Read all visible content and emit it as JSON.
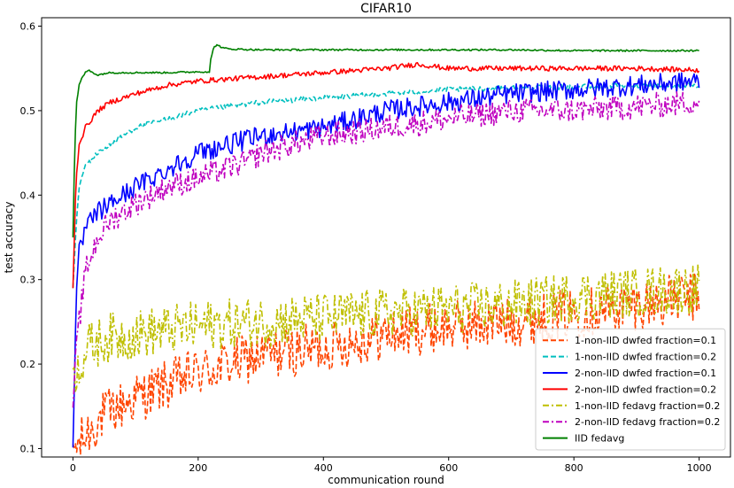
{
  "chart_data": {
    "type": "line",
    "title": "CIFAR10",
    "xlabel": "communication round",
    "ylabel": "test accuracy",
    "xlim": [
      -50,
      1050
    ],
    "ylim": [
      0.09,
      0.61
    ],
    "xticks": [
      0,
      200,
      400,
      600,
      800,
      1000
    ],
    "yticks": [
      0.1,
      0.2,
      0.3,
      0.4,
      0.5,
      0.6
    ],
    "xtick_labels": [
      "0",
      "200",
      "400",
      "600",
      "800",
      "1000"
    ],
    "ytick_labels": [
      "0.1",
      "0.2",
      "0.3",
      "0.4",
      "0.5",
      "0.6"
    ],
    "grid": false,
    "legend_position": "lower-right",
    "series": [
      {
        "name": "1-non-IID dwfed fraction=0.1",
        "color": "#ff4500",
        "style": "dashed",
        "x": [
          0,
          10,
          25,
          50,
          100,
          150,
          200,
          250,
          300,
          400,
          500,
          600,
          700,
          800,
          900,
          1000
        ],
        "y": [
          0.1,
          0.105,
          0.12,
          0.14,
          0.16,
          0.175,
          0.19,
          0.2,
          0.21,
          0.22,
          0.235,
          0.245,
          0.25,
          0.26,
          0.27,
          0.28
        ],
        "noise": 0.03
      },
      {
        "name": "1-non-IID dwfed fraction=0.2",
        "color": "#00bfbf",
        "style": "dashed",
        "x": [
          0,
          5,
          10,
          20,
          40,
          60,
          100,
          150,
          200,
          300,
          400,
          500,
          600,
          700,
          800,
          900,
          1000
        ],
        "y": [
          0.29,
          0.36,
          0.41,
          0.435,
          0.45,
          0.46,
          0.48,
          0.49,
          0.5,
          0.51,
          0.515,
          0.52,
          0.525,
          0.527,
          0.528,
          0.53,
          0.53
        ],
        "noise": 0.003
      },
      {
        "name": "2-non-IID dwfed fraction=0.1",
        "color": "#0000ff",
        "style": "solid",
        "x": [
          0,
          5,
          10,
          20,
          40,
          60,
          100,
          150,
          200,
          300,
          400,
          500,
          600,
          700,
          800,
          900,
          1000
        ],
        "y": [
          0.1,
          0.27,
          0.33,
          0.36,
          0.38,
          0.39,
          0.41,
          0.43,
          0.45,
          0.47,
          0.48,
          0.5,
          0.51,
          0.52,
          0.525,
          0.53,
          0.535
        ],
        "noise": 0.012
      },
      {
        "name": "2-non-IID dwfed fraction=0.2",
        "color": "#ff0000",
        "style": "solid",
        "x": [
          0,
          5,
          10,
          20,
          40,
          60,
          100,
          150,
          200,
          300,
          400,
          500,
          550,
          600,
          700,
          800,
          900,
          1000
        ],
        "y": [
          0.29,
          0.42,
          0.46,
          0.48,
          0.5,
          0.51,
          0.52,
          0.53,
          0.535,
          0.54,
          0.545,
          0.55,
          0.555,
          0.55,
          0.55,
          0.55,
          0.55,
          0.548
        ],
        "noise": 0.003
      },
      {
        "name": "1-non-IID fedavg fraction=0.2",
        "color": "#bfbf00",
        "style": "dashdot",
        "x": [
          0,
          10,
          25,
          50,
          100,
          150,
          200,
          300,
          400,
          500,
          600,
          700,
          800,
          900,
          1000
        ],
        "y": [
          0.19,
          0.2,
          0.22,
          0.23,
          0.235,
          0.24,
          0.245,
          0.25,
          0.255,
          0.26,
          0.265,
          0.27,
          0.28,
          0.285,
          0.29
        ],
        "noise": 0.03
      },
      {
        "name": "2-non-IID fedavg fraction=0.2",
        "color": "#bf00bf",
        "style": "dashdot",
        "x": [
          0,
          5,
          10,
          20,
          40,
          60,
          100,
          150,
          200,
          280,
          300,
          400,
          500,
          600,
          700,
          800,
          900,
          1000
        ],
        "y": [
          0.15,
          0.21,
          0.25,
          0.31,
          0.35,
          0.37,
          0.39,
          0.41,
          0.42,
          0.44,
          0.45,
          0.47,
          0.48,
          0.49,
          0.5,
          0.5,
          0.505,
          0.51
        ],
        "noise": 0.015
      },
      {
        "name": "IID fedavg",
        "color": "#008000",
        "style": "solid",
        "x": [
          0,
          3,
          6,
          10,
          15,
          20,
          25,
          30,
          40,
          50,
          60,
          100,
          150,
          200,
          219,
          220,
          225,
          230,
          240,
          250,
          300,
          400,
          500,
          600,
          700,
          800,
          900,
          1000
        ],
        "y": [
          0.35,
          0.46,
          0.51,
          0.53,
          0.54,
          0.545,
          0.548,
          0.546,
          0.542,
          0.544,
          0.545,
          0.545,
          0.545,
          0.546,
          0.546,
          0.56,
          0.575,
          0.578,
          0.574,
          0.573,
          0.572,
          0.572,
          0.572,
          0.572,
          0.572,
          0.571,
          0.571,
          0.571
        ],
        "noise": 0.001
      }
    ]
  }
}
